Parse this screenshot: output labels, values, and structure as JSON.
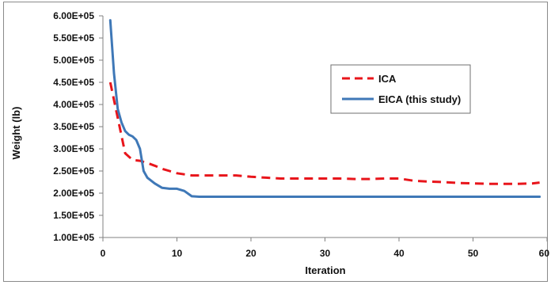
{
  "chart_data": {
    "type": "line",
    "xlabel": "Iteration",
    "ylabel": "Weight (lb)",
    "xlim": [
      0,
      60
    ],
    "ylim": [
      100000,
      600000
    ],
    "x_ticks": [
      "0",
      "10",
      "20",
      "30",
      "40",
      "50",
      "60"
    ],
    "y_ticks": [
      "1.00E+05",
      "1.50E+05",
      "2.00E+05",
      "2.50E+05",
      "3.00E+05",
      "3.50E+05",
      "4.00E+05",
      "4.50E+05",
      "5.00E+05",
      "5.50E+05",
      "6.00E+05"
    ],
    "grid": false,
    "legend_position": "upper-right",
    "series": [
      {
        "name": "ICA",
        "color": "#e8151b",
        "dash": "dashed",
        "x": [
          1,
          2,
          3,
          4,
          5,
          6,
          7,
          8,
          9,
          10,
          12,
          14,
          16,
          18,
          20,
          22,
          24,
          26,
          28,
          30,
          32,
          34,
          36,
          38,
          40,
          42,
          44,
          46,
          48,
          50,
          52,
          54,
          56,
          58,
          59
        ],
        "values": [
          450000,
          370000,
          290000,
          275000,
          273000,
          268000,
          262000,
          255000,
          250000,
          245000,
          240000,
          240000,
          240000,
          240000,
          237000,
          235000,
          233000,
          233000,
          233000,
          233000,
          233000,
          232000,
          232000,
          233000,
          233000,
          228000,
          226000,
          225000,
          223000,
          222000,
          221000,
          221000,
          221000,
          222000,
          224000
        ]
      },
      {
        "name": "EICA (this study)",
        "color": "#3f78b7",
        "dash": "solid",
        "x": [
          1,
          1.5,
          2,
          2.5,
          3,
          3.5,
          4,
          4.5,
          5,
          5.5,
          6,
          7,
          8,
          9,
          10,
          11,
          12,
          13,
          15,
          20,
          30,
          40,
          50,
          59
        ],
        "values": [
          590000,
          470000,
          390000,
          360000,
          340000,
          332000,
          328000,
          320000,
          300000,
          250000,
          235000,
          222000,
          212000,
          210000,
          210000,
          205000,
          193000,
          192000,
          192000,
          192000,
          192000,
          192000,
          192000,
          192000
        ]
      }
    ]
  }
}
